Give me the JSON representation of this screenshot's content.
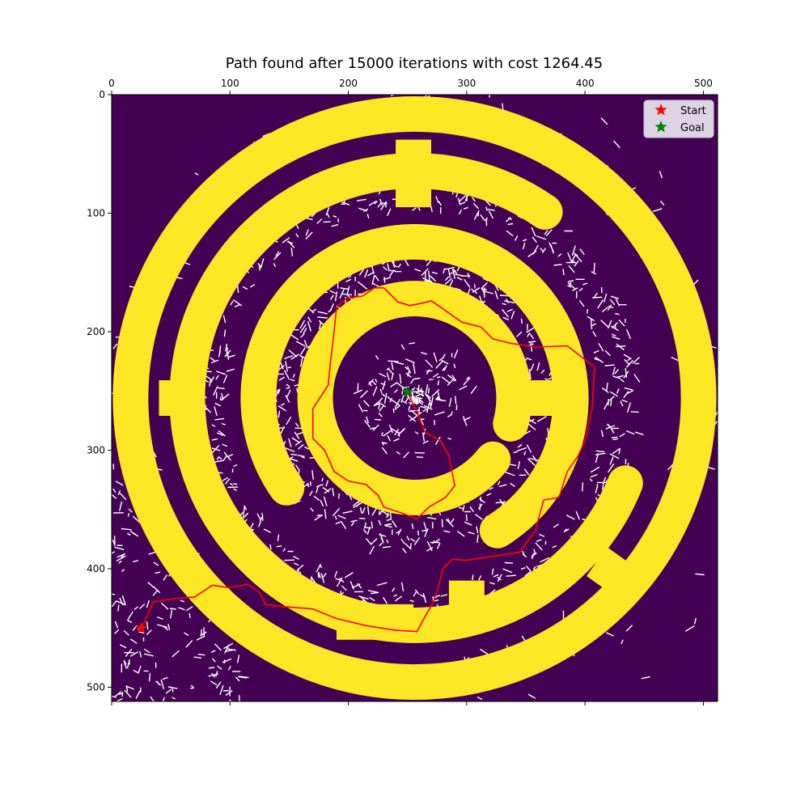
{
  "chart_data": {
    "type": "scatter",
    "title": "Path found after 15000 iterations with cost 1264.45",
    "xlabel": "",
    "ylabel": "",
    "xlim": [
      0,
      512
    ],
    "ylim": [
      512,
      0
    ],
    "x_ticks": [
      "0",
      "100",
      "200",
      "300",
      "400",
      "500"
    ],
    "y_ticks": [
      "0",
      "100",
      "200",
      "300",
      "400",
      "500"
    ],
    "x_axis_position": "top",
    "grid": false,
    "legend_position": "top-right",
    "colors": {
      "background": "#440154",
      "walls": "#fde725",
      "tree": "#ffffff",
      "path": "#ff0000",
      "start": "#ff0000",
      "goal": "#008000",
      "legend_bg": "#dcd3e3"
    },
    "series": [
      {
        "name": "Start",
        "marker": "star",
        "color": "#ff0000",
        "points": [
          [
            25,
            450
          ]
        ]
      },
      {
        "name": "Goal",
        "marker": "star",
        "color": "#008000",
        "points": [
          [
            250,
            251
          ]
        ]
      }
    ],
    "path": [
      [
        25,
        450
      ],
      [
        30,
        440
      ],
      [
        35,
        428
      ],
      [
        55,
        425
      ],
      [
        70,
        424
      ],
      [
        85,
        414
      ],
      [
        100,
        416
      ],
      [
        115,
        413
      ],
      [
        125,
        420
      ],
      [
        130,
        430
      ],
      [
        145,
        432
      ],
      [
        170,
        434
      ],
      [
        190,
        442
      ],
      [
        215,
        448
      ],
      [
        240,
        452
      ],
      [
        258,
        453
      ],
      [
        265,
        440
      ],
      [
        272,
        428
      ],
      [
        276,
        415
      ],
      [
        280,
        400
      ],
      [
        288,
        392
      ],
      [
        300,
        393
      ],
      [
        318,
        390
      ],
      [
        345,
        386
      ],
      [
        358,
        368
      ],
      [
        365,
        342
      ],
      [
        378,
        340
      ],
      [
        385,
        318
      ],
      [
        394,
        305
      ],
      [
        400,
        292
      ],
      [
        406,
        265
      ],
      [
        408,
        230
      ],
      [
        398,
        222
      ],
      [
        385,
        212
      ],
      [
        360,
        213
      ],
      [
        338,
        210
      ],
      [
        322,
        206
      ],
      [
        312,
        196
      ],
      [
        296,
        192
      ],
      [
        276,
        178
      ],
      [
        270,
        174
      ],
      [
        262,
        176
      ],
      [
        252,
        178
      ],
      [
        242,
        175
      ],
      [
        230,
        163
      ],
      [
        222,
        163
      ],
      [
        212,
        170
      ],
      [
        198,
        172
      ],
      [
        190,
        180
      ],
      [
        188,
        200
      ],
      [
        185,
        225
      ],
      [
        183,
        245
      ],
      [
        170,
        265
      ],
      [
        170,
        290
      ],
      [
        180,
        300
      ],
      [
        188,
        318
      ],
      [
        200,
        326
      ],
      [
        215,
        329
      ],
      [
        225,
        338
      ],
      [
        230,
        348
      ],
      [
        245,
        353
      ],
      [
        258,
        358
      ],
      [
        268,
        348
      ],
      [
        282,
        340
      ],
      [
        290,
        330
      ],
      [
        285,
        305
      ],
      [
        278,
        292
      ],
      [
        265,
        285
      ],
      [
        258,
        268
      ],
      [
        250,
        251
      ]
    ]
  }
}
